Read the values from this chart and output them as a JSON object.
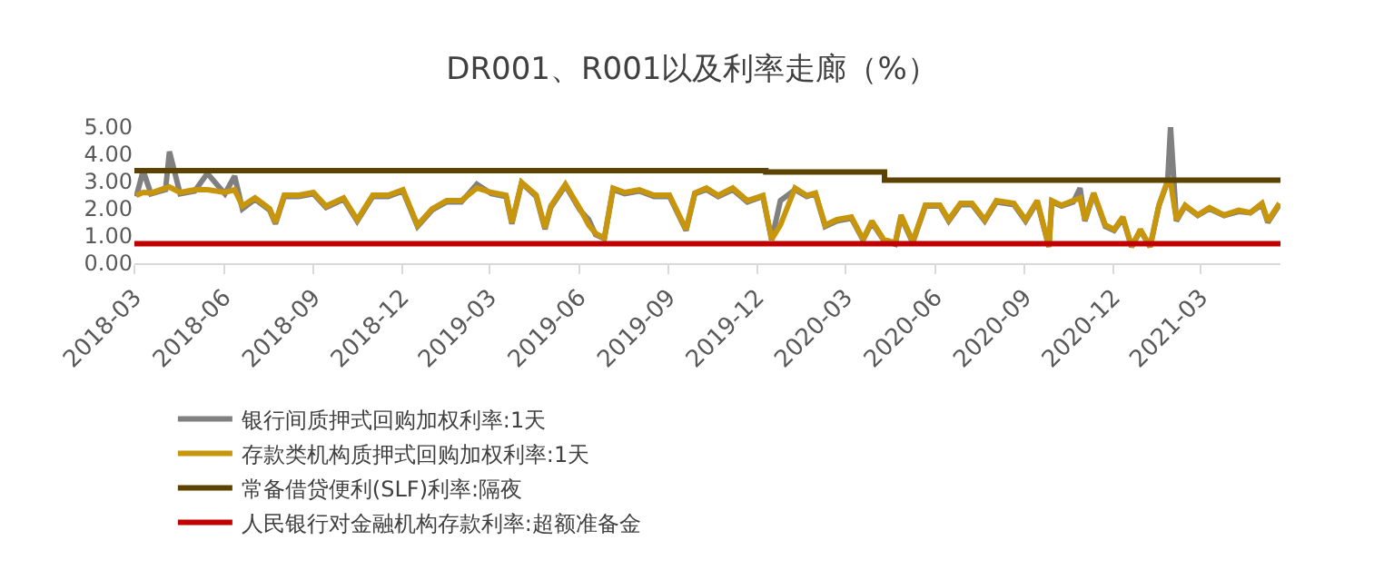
{
  "chart_data": {
    "type": "line",
    "title": "DR001、R001以及利率走廊（%）",
    "x": [
      "2018-03-03",
      "2018-03-10",
      "2018-03-18",
      "2018-04-02",
      "2018-04-06",
      "2018-04-17",
      "2018-05-02",
      "2018-05-15",
      "2018-06-02",
      "2018-06-12",
      "2018-06-20",
      "2018-07-03",
      "2018-07-18",
      "2018-07-24",
      "2018-08-02",
      "2018-08-17",
      "2018-09-01",
      "2018-09-14",
      "2018-10-02",
      "2018-10-16",
      "2018-11-01",
      "2018-11-17",
      "2018-12-02",
      "2018-12-17",
      "2019-01-01",
      "2019-01-16",
      "2019-01-31",
      "2019-02-16",
      "2019-03-03",
      "2019-03-18",
      "2019-03-24",
      "2019-04-03",
      "2019-04-18",
      "2019-04-27",
      "2019-05-03",
      "2019-05-18",
      "2019-06-02",
      "2019-06-11",
      "2019-06-18",
      "2019-06-27",
      "2019-07-06",
      "2019-07-18",
      "2019-08-02",
      "2019-08-17",
      "2019-09-02",
      "2019-09-19",
      "2019-09-28",
      "2019-10-10",
      "2019-10-22",
      "2019-11-06",
      "2019-11-21",
      "2019-12-07",
      "2019-12-16",
      "2019-12-25",
      "2020-01-09",
      "2020-01-21",
      "2020-01-30",
      "2020-02-09",
      "2020-02-21",
      "2020-03-07",
      "2020-03-19",
      "2020-03-28",
      "2020-04-09",
      "2020-04-21",
      "2020-04-27",
      "2020-05-09",
      "2020-05-22",
      "2020-06-06",
      "2020-06-15",
      "2020-06-27",
      "2020-07-09",
      "2020-07-22",
      "2020-08-03",
      "2020-08-21",
      "2020-09-02",
      "2020-09-14",
      "2020-09-26",
      "2020-09-29",
      "2020-10-09",
      "2020-10-21",
      "2020-10-28",
      "2020-11-02",
      "2020-11-11",
      "2020-11-23",
      "2020-12-02",
      "2020-12-11",
      "2020-12-20",
      "2020-12-29",
      "2021-01-08",
      "2021-01-17",
      "2021-01-26",
      "2021-01-29",
      "2021-02-04",
      "2021-02-13",
      "2021-02-26",
      "2021-03-10",
      "2021-03-25",
      "2021-04-09",
      "2021-04-21",
      "2021-05-03",
      "2021-05-09",
      "2021-05-21"
    ],
    "series": [
      {
        "name": "银行间质押式回购加权利率:1天",
        "color": "#808080",
        "values": [
          2.45,
          3.4,
          2.55,
          2.7,
          4.1,
          2.55,
          2.65,
          3.3,
          2.55,
          3.2,
          2.0,
          2.35,
          1.95,
          1.45,
          2.45,
          2.45,
          2.55,
          2.05,
          2.35,
          1.55,
          2.45,
          2.45,
          2.65,
          1.35,
          1.95,
          2.25,
          2.25,
          2.9,
          2.55,
          2.45,
          1.45,
          2.95,
          2.45,
          1.25,
          2.05,
          2.85,
          1.95,
          1.6,
          1.05,
          0.9,
          2.7,
          2.55,
          2.65,
          2.45,
          2.45,
          1.2,
          2.55,
          2.7,
          2.45,
          2.7,
          2.25,
          2.45,
          0.85,
          2.3,
          2.7,
          2.45,
          2.55,
          1.35,
          1.55,
          1.65,
          0.85,
          1.5,
          0.85,
          0.7,
          1.7,
          0.75,
          2.1,
          2.1,
          1.55,
          2.15,
          2.15,
          1.55,
          2.25,
          2.15,
          1.55,
          2.25,
          0.6,
          2.25,
          2.1,
          2.25,
          2.76,
          1.55,
          2.55,
          1.35,
          1.2,
          1.65,
          0.6,
          1.2,
          0.6,
          2.1,
          3.0,
          5.0,
          1.55,
          2.1,
          1.75,
          2.0,
          1.75,
          1.9,
          1.85,
          2.15,
          1.5,
          2.15
        ]
      },
      {
        "name": "存款类机构质押式回购加权利率:1天",
        "color": "#c8960c",
        "values": [
          2.49,
          2.6,
          2.58,
          2.76,
          2.8,
          2.6,
          2.7,
          2.7,
          2.6,
          2.7,
          2.1,
          2.4,
          2.0,
          1.5,
          2.5,
          2.5,
          2.6,
          2.1,
          2.4,
          1.6,
          2.5,
          2.5,
          2.7,
          1.4,
          2.0,
          2.3,
          2.3,
          2.76,
          2.6,
          2.5,
          1.5,
          2.97,
          2.5,
          1.3,
          2.1,
          2.9,
          2.0,
          1.4,
          1.1,
          0.92,
          2.76,
          2.6,
          2.7,
          2.5,
          2.5,
          1.24,
          2.58,
          2.76,
          2.49,
          2.76,
          2.3,
          2.49,
          0.88,
          1.4,
          2.76,
          2.49,
          2.58,
          1.4,
          1.6,
          1.7,
          0.88,
          1.55,
          0.88,
          0.75,
          1.77,
          0.8,
          2.13,
          2.13,
          1.6,
          2.2,
          2.2,
          1.6,
          2.3,
          2.2,
          1.6,
          2.3,
          0.61,
          2.3,
          2.13,
          2.3,
          2.4,
          1.6,
          2.58,
          1.4,
          1.24,
          1.7,
          0.61,
          1.24,
          0.61,
          2.13,
          3.03,
          3.0,
          1.6,
          2.13,
          1.77,
          2.04,
          1.77,
          1.95,
          1.86,
          2.2,
          1.55,
          2.2
        ]
      },
      {
        "name": "常备借贷便利(SLF)利率:隔夜",
        "color": "#5c4300",
        "type": "step",
        "x": [
          "2018-03-01",
          "2019-12-10",
          "2020-04-10",
          "2021-05-22"
        ],
        "values": [
          3.4,
          3.35,
          3.05,
          3.05
        ]
      },
      {
        "name": "人民银行对金融机构存款利率:超额准备金",
        "color": "#c00000",
        "x": [
          "2018-03-01",
          "2021-05-22"
        ],
        "values": [
          0.72,
          0.72
        ]
      }
    ],
    "xlim": [
      "2018-03-01",
      "2021-05-22"
    ],
    "xticks": [
      "2018-03",
      "2018-06",
      "2018-09",
      "2018-12",
      "2019-03",
      "2019-06",
      "2019-09",
      "2019-12",
      "2020-03",
      "2020-06",
      "2020-09",
      "2020-12",
      "2021-03"
    ],
    "ylim": [
      0,
      5
    ],
    "yticks": [
      {
        "value": 0,
        "label": "0.00"
      },
      {
        "value": 1,
        "label": "1.00"
      },
      {
        "value": 2,
        "label": "2.00"
      },
      {
        "value": 3,
        "label": "3.00"
      },
      {
        "value": 4,
        "label": "4.00"
      },
      {
        "value": 5,
        "label": "5.00"
      }
    ],
    "legend": "bottom",
    "marker": "none",
    "line_style": "solid"
  }
}
